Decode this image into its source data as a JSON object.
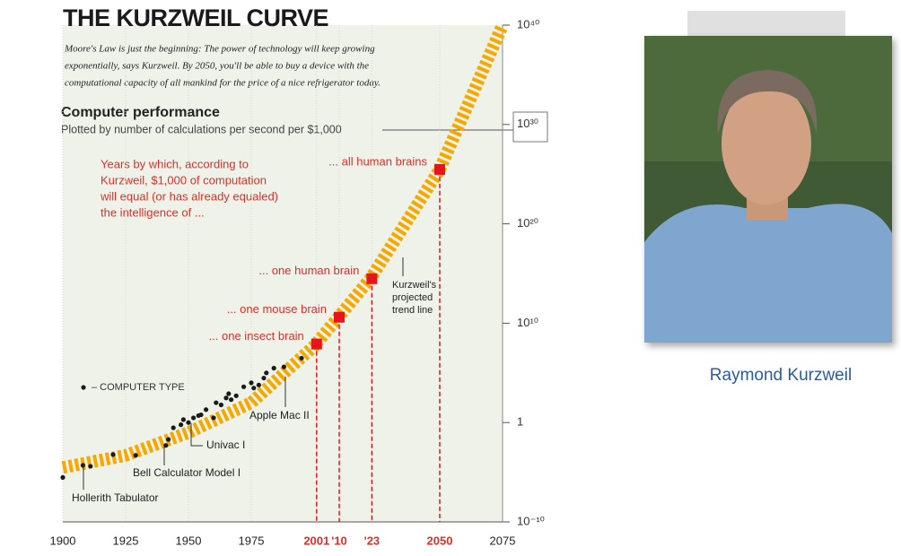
{
  "chart_data": {
    "type": "line",
    "title": "THE KURZWEIL CURVE",
    "subtitle_lines": [
      "Moore's Law is just the beginning: The power of technology will keep growing",
      "exponentially, says Kurzweil. By 2050, you'll be able to buy a device with the",
      "computational capacity of all mankind for the price of a nice refrigerator today."
    ],
    "heading": "Computer performance",
    "subheading": "Plotted by number of calculations per second per $1,000",
    "note_lines": [
      "Years by which, according to",
      "Kurzweil, $1,000 of computation",
      "will equal (or has already equaled)",
      "the intelligence of ..."
    ],
    "log_y": true,
    "grid": true,
    "xlim": [
      1900,
      2075
    ],
    "xticks": [
      1900,
      1925,
      1950,
      1975,
      2001,
      {
        "value": 2010,
        "label": "'10"
      },
      {
        "value": 2023,
        "label": "'23"
      },
      2050,
      2075
    ],
    "ylim": [
      1e-10,
      1e+40
    ],
    "yticks": [
      {
        "value": 1e-10,
        "label": "10⁻¹⁰"
      },
      1,
      {
        "value": 10000000000.0,
        "label": "10¹⁰"
      },
      {
        "value": 1e+20,
        "label": "10²⁰"
      },
      {
        "value": 1e+30,
        "label": "10³⁰"
      },
      {
        "value": 1e+40,
        "label": "10⁴⁰"
      }
    ],
    "series": [
      {
        "type": "line",
        "color": "#f5a800",
        "x": [
          1900,
          1925,
          1950,
          1975,
          2000,
          2010,
          2023,
          2050,
          2075
        ],
        "values": [
          3e-05,
          0.0005,
          0.1,
          100,
          50000000.0,
          50000000000.0,
          500000000000000.0,
          3e+25,
          1e+40
        ]
      },
      {
        "type": "scatter",
        "name": "– COMPUTER TYPE",
        "color": "#1a1a1a",
        "x": [
          1900,
          1908,
          1911,
          1920,
          1929,
          1941,
          1942,
          1944,
          1947,
          1948,
          1950,
          1952,
          1954,
          1955,
          1957,
          1960,
          1961,
          1963,
          1965,
          1966,
          1967,
          1969,
          1972,
          1975,
          1976,
          1978,
          1980,
          1981,
          1984,
          1988,
          1995,
          2000
        ],
        "values": [
          3e-06,
          5e-05,
          4e-05,
          0.0006,
          0.0005,
          0.005,
          0.02,
          0.3,
          0.6,
          2,
          1,
          3,
          5,
          6,
          20,
          3,
          100,
          60,
          300,
          800,
          200,
          500,
          4000,
          10000,
          3000,
          6000,
          30000,
          100000,
          300000,
          400000,
          3000000,
          50000000
        ]
      },
      {
        "type": "milestone",
        "color": "#e8141b",
        "x": [
          2001,
          2010,
          2023,
          2050
        ],
        "values": [
          80000000.0,
          40000000000.0,
          300000000000000.0,
          3e+25
        ],
        "labels": [
          "... one insect brain",
          "... one mouse brain",
          "... one human brain",
          "... all human brains"
        ]
      }
    ],
    "annotations": [
      [
        "Hollerith Tabulator"
      ],
      [
        "Bell Calculator Model I"
      ],
      [
        "Univac I"
      ],
      [
        "Apple Mac II"
      ],
      [
        "Kurzweil's",
        "projected",
        "trend line"
      ]
    ]
  },
  "photo": {
    "caption": "Raymond Kurzweil"
  }
}
